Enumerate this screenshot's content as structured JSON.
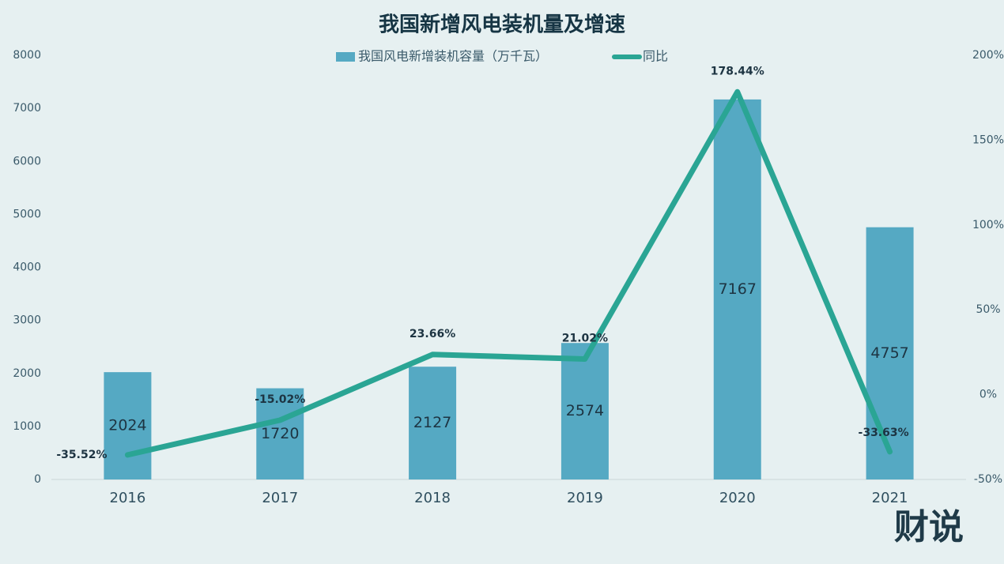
{
  "chart_data": {
    "type": "bar-line",
    "title": "我国新增风电装机量及增速",
    "categories": [
      "2016",
      "2017",
      "2018",
      "2019",
      "2020",
      "2021"
    ],
    "series": [
      {
        "name": "我国风电新增装机容量（万千瓦）",
        "type": "bar",
        "color": "#55a9c3",
        "values": [
          2024,
          1720,
          2127,
          2574,
          7167,
          4757
        ]
      },
      {
        "name": "同比",
        "type": "line",
        "axis": "y2",
        "color": "#2aa594",
        "values": [
          -35.52,
          -15.02,
          23.66,
          21.02,
          178.44,
          -33.63
        ],
        "value_labels": [
          "-35.52%",
          "-15.02%",
          "23.66%",
          "21.02%",
          "178.44%",
          "-33.63%"
        ]
      }
    ],
    "ylim": [
      0,
      8000
    ],
    "yticks": [
      0,
      1000,
      2000,
      3000,
      4000,
      5000,
      6000,
      7000,
      8000
    ],
    "y2lim": [
      -50,
      200
    ],
    "y2ticks": [
      {
        "value": -50,
        "label": "-50%"
      },
      {
        "value": 0,
        "label": "0%"
      },
      {
        "value": 50,
        "label": "50%"
      },
      {
        "value": 100,
        "label": "100%"
      },
      {
        "value": 150,
        "label": "150%"
      },
      {
        "value": 200,
        "label": "200%"
      }
    ],
    "legend": "top",
    "grid": false,
    "logo": "财说"
  }
}
